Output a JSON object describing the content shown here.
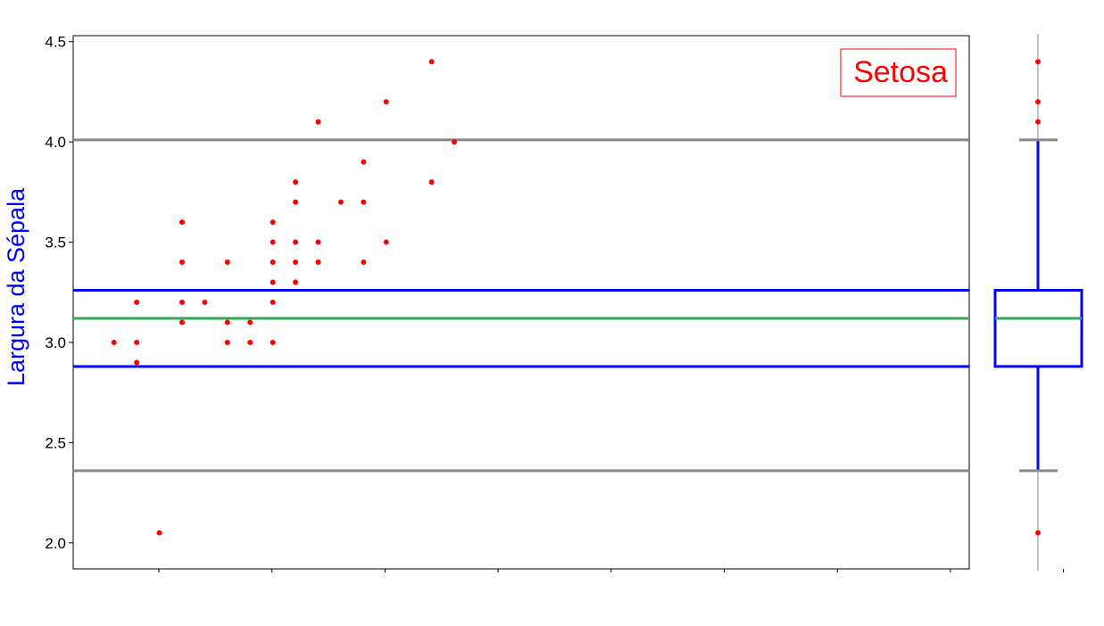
{
  "chart_data": {
    "type": "scatter",
    "title": "",
    "xlabel": "",
    "ylabel": "Largura da Sépala",
    "legend_label": "Setosa",
    "ylim": [
      1.87,
      4.53
    ],
    "xlim": [
      0,
      39.5
    ],
    "yticks": [
      "2.0",
      "2.5",
      "3.0",
      "3.5",
      "4.0",
      "4.5"
    ],
    "x_tick_count": 8,
    "grid": false,
    "reference_lines": {
      "upper_whisker": 4.01,
      "q3": 3.26,
      "median": 3.12,
      "q1": 2.88,
      "lower_whisker": 2.36
    },
    "points": [
      {
        "x": 1.8,
        "y": 3.0
      },
      {
        "x": 2.8,
        "y": 3.2
      },
      {
        "x": 2.8,
        "y": 3.0
      },
      {
        "x": 2.8,
        "y": 2.9
      },
      {
        "x": 3.8,
        "y": 2.05
      },
      {
        "x": 4.8,
        "y": 3.6
      },
      {
        "x": 4.8,
        "y": 3.4
      },
      {
        "x": 4.8,
        "y": 3.2
      },
      {
        "x": 4.8,
        "y": 3.1
      },
      {
        "x": 5.8,
        "y": 3.2
      },
      {
        "x": 6.8,
        "y": 3.4
      },
      {
        "x": 6.8,
        "y": 3.1
      },
      {
        "x": 6.8,
        "y": 3.0
      },
      {
        "x": 7.8,
        "y": 3.1
      },
      {
        "x": 7.8,
        "y": 3.0
      },
      {
        "x": 8.8,
        "y": 3.6
      },
      {
        "x": 8.8,
        "y": 3.5
      },
      {
        "x": 8.8,
        "y": 3.4
      },
      {
        "x": 8.8,
        "y": 3.3
      },
      {
        "x": 8.8,
        "y": 3.2
      },
      {
        "x": 8.8,
        "y": 3.0
      },
      {
        "x": 9.8,
        "y": 3.8
      },
      {
        "x": 9.8,
        "y": 3.7
      },
      {
        "x": 9.8,
        "y": 3.5
      },
      {
        "x": 9.8,
        "y": 3.4
      },
      {
        "x": 9.8,
        "y": 3.3
      },
      {
        "x": 10.8,
        "y": 4.1
      },
      {
        "x": 10.8,
        "y": 3.5
      },
      {
        "x": 10.8,
        "y": 3.4
      },
      {
        "x": 11.8,
        "y": 3.7
      },
      {
        "x": 12.8,
        "y": 3.9
      },
      {
        "x": 12.8,
        "y": 3.7
      },
      {
        "x": 12.8,
        "y": 3.4
      },
      {
        "x": 13.8,
        "y": 4.2
      },
      {
        "x": 13.8,
        "y": 3.5
      },
      {
        "x": 15.8,
        "y": 4.4
      },
      {
        "x": 15.8,
        "y": 3.8
      },
      {
        "x": 16.8,
        "y": 4.0
      }
    ],
    "boxplot": {
      "q1": 2.88,
      "median": 3.12,
      "q3": 3.26,
      "whisker_low": 2.36,
      "whisker_high": 4.01,
      "outliers": [
        4.4,
        4.2,
        4.1,
        2.05
      ]
    },
    "colors": {
      "points": "#ff0000",
      "quartile_lines": "#0000ff",
      "median_line": "#33a852",
      "whisker_lines": "#888888",
      "axis": "#000000",
      "ylabel": "#0000ff",
      "legend": "#ff0000"
    }
  }
}
